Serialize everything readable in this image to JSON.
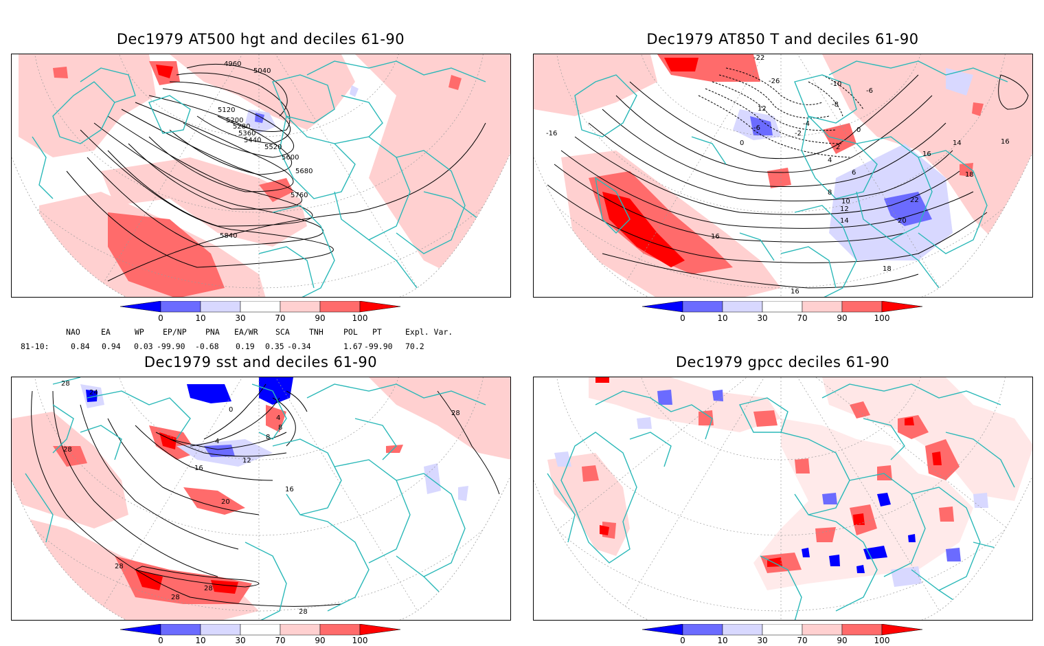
{
  "panels": {
    "p1": {
      "title": "Dec1979 AT500 hgt and deciles 61-90",
      "contour_labels": [
        "4960",
        "5040",
        "5120",
        "5200",
        "5280",
        "5360",
        "5440",
        "5520",
        "5600",
        "5680",
        "5760",
        "5840"
      ]
    },
    "p2": {
      "title": "Dec1979 AT850 T and deciles 61-90",
      "contour_labels": [
        "-26",
        "-22",
        "-10",
        "-6",
        "-8",
        "-6",
        "-4",
        "-2",
        "0",
        "0",
        "2",
        "4",
        "6",
        "8",
        "10",
        "12",
        "12",
        "14",
        "14",
        "16",
        "16",
        "16",
        "16",
        "18",
        "18",
        "20",
        "22",
        "-16"
      ]
    },
    "p3": {
      "title": "Dec1979 sst and deciles 61-90",
      "contour_labels": [
        "24",
        "28",
        "28",
        "0",
        "4",
        "8",
        "12",
        "16",
        "16",
        "20",
        "28",
        "28",
        "28",
        "28",
        "28",
        "4",
        "8"
      ]
    },
    "p4": {
      "title": "Dec1979 gpcc deciles 61-90"
    }
  },
  "colorbar": {
    "ticks": [
      "0",
      "10",
      "30",
      "70",
      "90",
      "100"
    ],
    "colors": [
      "#0000ff",
      "#6b6bff",
      "#d8d8ff",
      "#ffffff",
      "#ffd0d0",
      "#ff6b6b",
      "#ff0000"
    ]
  },
  "indices": {
    "headers": [
      "NAO",
      "EA",
      "WP",
      "EP/NP",
      "PNA",
      "EA/WR",
      "SCA",
      "TNH",
      "POL",
      "PT",
      "Expl. Var."
    ],
    "row_label": "81-10:",
    "values": [
      "0.84",
      "0.94",
      "0.03",
      "-99.90",
      "-0.68",
      "0.19",
      "0.35",
      "-0.34",
      "1.67",
      "-99.90",
      "70.2"
    ]
  }
}
